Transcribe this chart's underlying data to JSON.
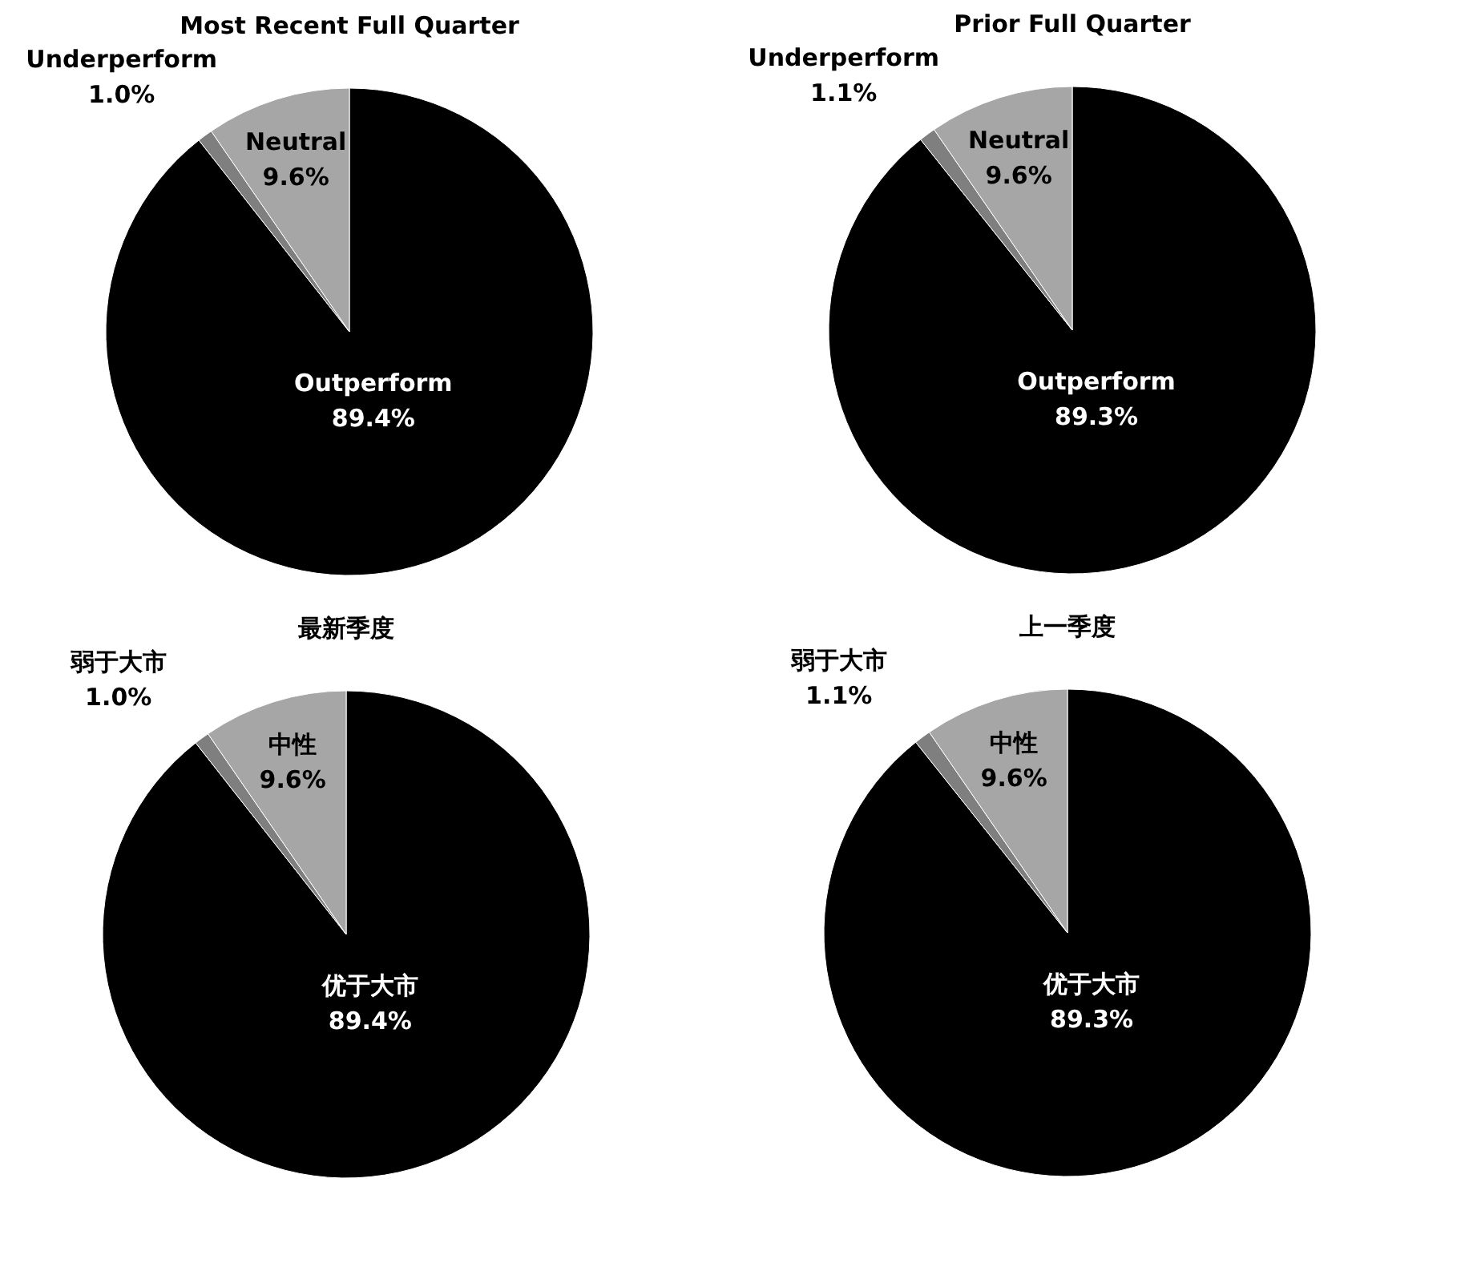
{
  "chart_data": [
    {
      "type": "pie",
      "title": "Most Recent Full Quarter",
      "categories": [
        "Outperform",
        "Underperform",
        "Neutral"
      ],
      "values": [
        89.4,
        1.0,
        9.6
      ],
      "colors": [
        "#000000",
        "#7f7f7f",
        "#a6a6a6"
      ],
      "value_labels": [
        "89.4%",
        "1.0%",
        "9.6%"
      ]
    },
    {
      "type": "pie",
      "title": "Prior Full Quarter",
      "categories": [
        "Outperform",
        "Underperform",
        "Neutral"
      ],
      "values": [
        89.3,
        1.1,
        9.6
      ],
      "colors": [
        "#000000",
        "#7f7f7f",
        "#a6a6a6"
      ],
      "value_labels": [
        "89.3%",
        "1.1%",
        "9.6%"
      ]
    },
    {
      "type": "pie",
      "title": "最新季度",
      "categories": [
        "优于大市",
        "弱于大市",
        "中性"
      ],
      "values": [
        89.4,
        1.0,
        9.6
      ],
      "colors": [
        "#000000",
        "#7f7f7f",
        "#a6a6a6"
      ],
      "value_labels": [
        "89.4%",
        "1.0%",
        "9.6%"
      ]
    },
    {
      "type": "pie",
      "title": "上一季度",
      "categories": [
        "优于大市",
        "弱于大市",
        "中性"
      ],
      "values": [
        89.3,
        1.1,
        9.6
      ],
      "colors": [
        "#000000",
        "#7f7f7f",
        "#a6a6a6"
      ],
      "value_labels": [
        "89.3%",
        "1.1%",
        "9.6%"
      ]
    }
  ]
}
